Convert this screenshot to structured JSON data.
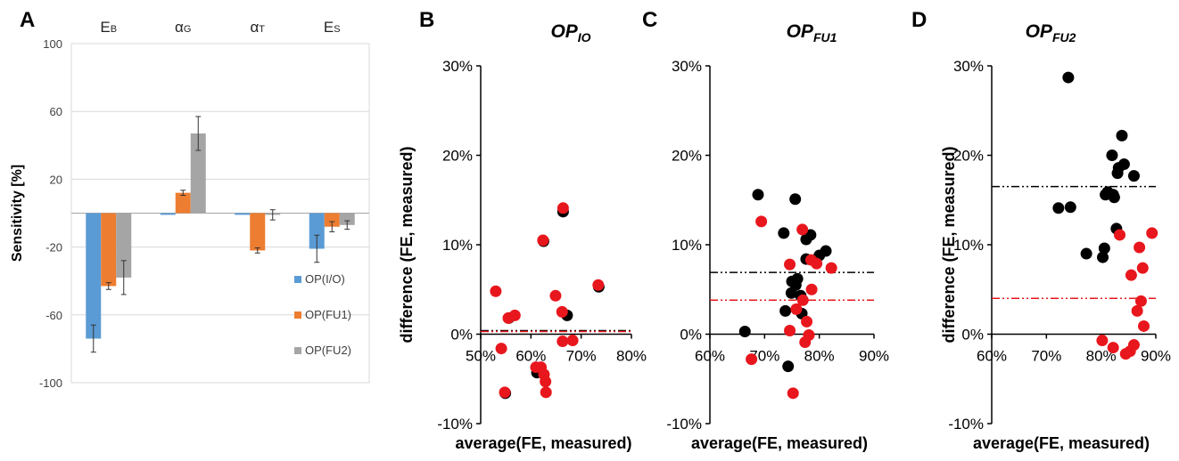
{
  "colors": {
    "op_io": "#5b9bd5",
    "op_fu1": "#ed7d31",
    "op_fu2": "#a5a5a5",
    "black_points": "#000000",
    "red_points": "#e8171d",
    "gridline": "#d9d9d9"
  },
  "chart_data": [
    {
      "panel": "A",
      "type": "bar",
      "ylabel": "Sensitivity [%]",
      "ylim": [
        -100,
        100
      ],
      "yticks": [
        "100",
        "60",
        "20",
        "-20",
        "-60",
        "-100"
      ],
      "ytick_values": [
        100,
        60,
        20,
        -20,
        -60,
        -100
      ],
      "categories": [
        {
          "main": "E",
          "sub": "B"
        },
        {
          "main": "α",
          "sub": "G"
        },
        {
          "main": "α",
          "sub": "T"
        },
        {
          "main": "E",
          "sub": "S"
        }
      ],
      "grid": true,
      "legend_position": "bottom-right",
      "series": [
        {
          "name": "OP(I/O)",
          "color": "#5b9bd5",
          "values": [
            -74,
            -1,
            -1,
            -21
          ],
          "errors": [
            8,
            0,
            0,
            8
          ]
        },
        {
          "name": "OP(FU1)",
          "color": "#ed7d31",
          "values": [
            -43,
            12,
            -22,
            -8
          ],
          "errors": [
            2,
            1.5,
            1.5,
            3
          ]
        },
        {
          "name": "OP(FU2)",
          "color": "#a5a5a5",
          "values": [
            -38,
            47,
            -1,
            -7
          ],
          "errors": [
            10,
            10,
            3,
            2.5
          ]
        }
      ]
    },
    {
      "panel": "B",
      "type": "scatter",
      "title": "OP",
      "title_sub": "IO",
      "xlabel": "average(FE, measured)",
      "ylabel": "difference (FE, measured)",
      "xlim": [
        0.5,
        0.8
      ],
      "ylim": [
        -0.1,
        0.3
      ],
      "xticks": [
        "50%",
        "60%",
        "70%",
        "80%"
      ],
      "xtick_values": [
        0.5,
        0.6,
        0.7,
        0.8
      ],
      "yticks": [
        "30%",
        "20%",
        "10%",
        "0%",
        "-10%"
      ],
      "ytick_values": [
        0.3,
        0.2,
        0.1,
        0.0,
        -0.1
      ],
      "axis_cross_y": 0.0,
      "mean_lines": [
        {
          "series": "black",
          "y": 0.004
        },
        {
          "series": "red",
          "y": 0.003
        }
      ],
      "series": [
        {
          "name": "black",
          "color": "#000000",
          "points": [
            [
              0.549,
              -0.066
            ],
            [
              0.556,
              0.018
            ],
            [
              0.612,
              -0.043
            ],
            [
              0.625,
              0.104
            ],
            [
              0.664,
              0.137
            ],
            [
              0.672,
              0.021
            ],
            [
              0.735,
              0.053
            ]
          ]
        },
        {
          "name": "red",
          "color": "#e8171d",
          "points": [
            [
              0.53,
              0.048
            ],
            [
              0.541,
              -0.016
            ],
            [
              0.548,
              -0.065
            ],
            [
              0.555,
              0.018
            ],
            [
              0.568,
              0.021
            ],
            [
              0.61,
              -0.037
            ],
            [
              0.62,
              -0.037
            ],
            [
              0.624,
              0.105
            ],
            [
              0.626,
              -0.045
            ],
            [
              0.629,
              -0.053
            ],
            [
              0.63,
              -0.065
            ],
            [
              0.649,
              0.043
            ],
            [
              0.662,
              0.025
            ],
            [
              0.664,
              0.141
            ],
            [
              0.663,
              -0.008
            ],
            [
              0.683,
              -0.007
            ],
            [
              0.734,
              0.055
            ]
          ]
        }
      ]
    },
    {
      "panel": "C",
      "type": "scatter",
      "title": "OP",
      "title_sub": "FU1",
      "xlabel": "average(FE, measured)",
      "ylabel": "",
      "xlim": [
        0.6,
        0.9
      ],
      "ylim": [
        -0.1,
        0.3
      ],
      "xticks": [
        "60%",
        "70%",
        "80%",
        "90%"
      ],
      "xtick_values": [
        0.6,
        0.7,
        0.8,
        0.9
      ],
      "yticks": [
        "30%",
        "20%",
        "10%",
        "0%",
        "-10%"
      ],
      "ytick_values": [
        0.3,
        0.2,
        0.1,
        0.0,
        -0.1
      ],
      "axis_cross_y": 0.0,
      "mean_lines": [
        {
          "series": "black",
          "y": 0.069
        },
        {
          "series": "red",
          "y": 0.038
        }
      ],
      "series": [
        {
          "name": "black",
          "color": "#000000",
          "points": [
            [
              0.664,
              0.003
            ],
            [
              0.688,
              0.156
            ],
            [
              0.735,
              0.113
            ],
            [
              0.738,
              0.026
            ],
            [
              0.743,
              -0.036
            ],
            [
              0.749,
              0.046
            ],
            [
              0.75,
              0.059
            ],
            [
              0.756,
              0.151
            ],
            [
              0.757,
              0.055
            ],
            [
              0.76,
              0.062
            ],
            [
              0.766,
              0.043
            ],
            [
              0.768,
              0.023
            ],
            [
              0.776,
              0.084
            ],
            [
              0.776,
              0.106
            ],
            [
              0.784,
              0.111
            ],
            [
              0.8,
              0.088
            ],
            [
              0.812,
              0.093
            ]
          ]
        },
        {
          "name": "red",
          "color": "#e8171d",
          "points": [
            [
              0.676,
              -0.028
            ],
            [
              0.694,
              0.126
            ],
            [
              0.746,
              0.078
            ],
            [
              0.746,
              0.004
            ],
            [
              0.752,
              -0.066
            ],
            [
              0.758,
              0.028
            ],
            [
              0.769,
              0.117
            ],
            [
              0.77,
              0.038
            ],
            [
              0.774,
              -0.009
            ],
            [
              0.781,
              -0.001
            ],
            [
              0.777,
              0.014
            ],
            [
              0.785,
              0.083
            ],
            [
              0.786,
              0.05
            ],
            [
              0.795,
              0.079
            ],
            [
              0.822,
              0.074
            ]
          ]
        }
      ]
    },
    {
      "panel": "D",
      "type": "scatter",
      "title": "OP",
      "title_sub": "FU2",
      "xlabel": "average(FE, measured)",
      "ylabel": "difference (FE, measured)",
      "xlim": [
        0.6,
        0.9
      ],
      "ylim": [
        -0.1,
        0.3
      ],
      "xticks": [
        "60%",
        "70%",
        "80%",
        "90%"
      ],
      "xtick_values": [
        0.6,
        0.7,
        0.8,
        0.9
      ],
      "yticks": [
        "30%",
        "20%",
        "10%",
        "0%",
        "-10%"
      ],
      "ytick_values": [
        0.3,
        0.2,
        0.1,
        0.0,
        -0.1
      ],
      "axis_cross_y": 0.0,
      "mean_lines": [
        {
          "series": "black",
          "y": 0.165
        },
        {
          "series": "red",
          "y": 0.04
        }
      ],
      "series": [
        {
          "name": "black",
          "color": "#000000",
          "points": [
            [
              0.722,
              0.141
            ],
            [
              0.744,
              0.142
            ],
            [
              0.74,
              0.287
            ],
            [
              0.773,
              0.09
            ],
            [
              0.803,
              0.086
            ],
            [
              0.806,
              0.096
            ],
            [
              0.808,
              0.156
            ],
            [
              0.812,
              0.159
            ],
            [
              0.82,
              0.2
            ],
            [
              0.822,
              0.156
            ],
            [
              0.824,
              0.153
            ],
            [
              0.828,
              0.118
            ],
            [
              0.83,
              0.18
            ],
            [
              0.832,
              0.186
            ],
            [
              0.838,
              0.222
            ],
            [
              0.842,
              0.19
            ],
            [
              0.86,
              0.177
            ]
          ]
        },
        {
          "name": "red",
          "color": "#e8171d",
          "points": [
            [
              0.802,
              -0.007
            ],
            [
              0.822,
              -0.015
            ],
            [
              0.834,
              0.111
            ],
            [
              0.845,
              -0.022
            ],
            [
              0.853,
              -0.019
            ],
            [
              0.855,
              0.066
            ],
            [
              0.86,
              -0.012
            ],
            [
              0.866,
              0.026
            ],
            [
              0.87,
              0.097
            ],
            [
              0.873,
              0.037
            ],
            [
              0.876,
              0.074
            ],
            [
              0.878,
              0.009
            ],
            [
              0.893,
              0.113
            ]
          ]
        }
      ]
    }
  ]
}
